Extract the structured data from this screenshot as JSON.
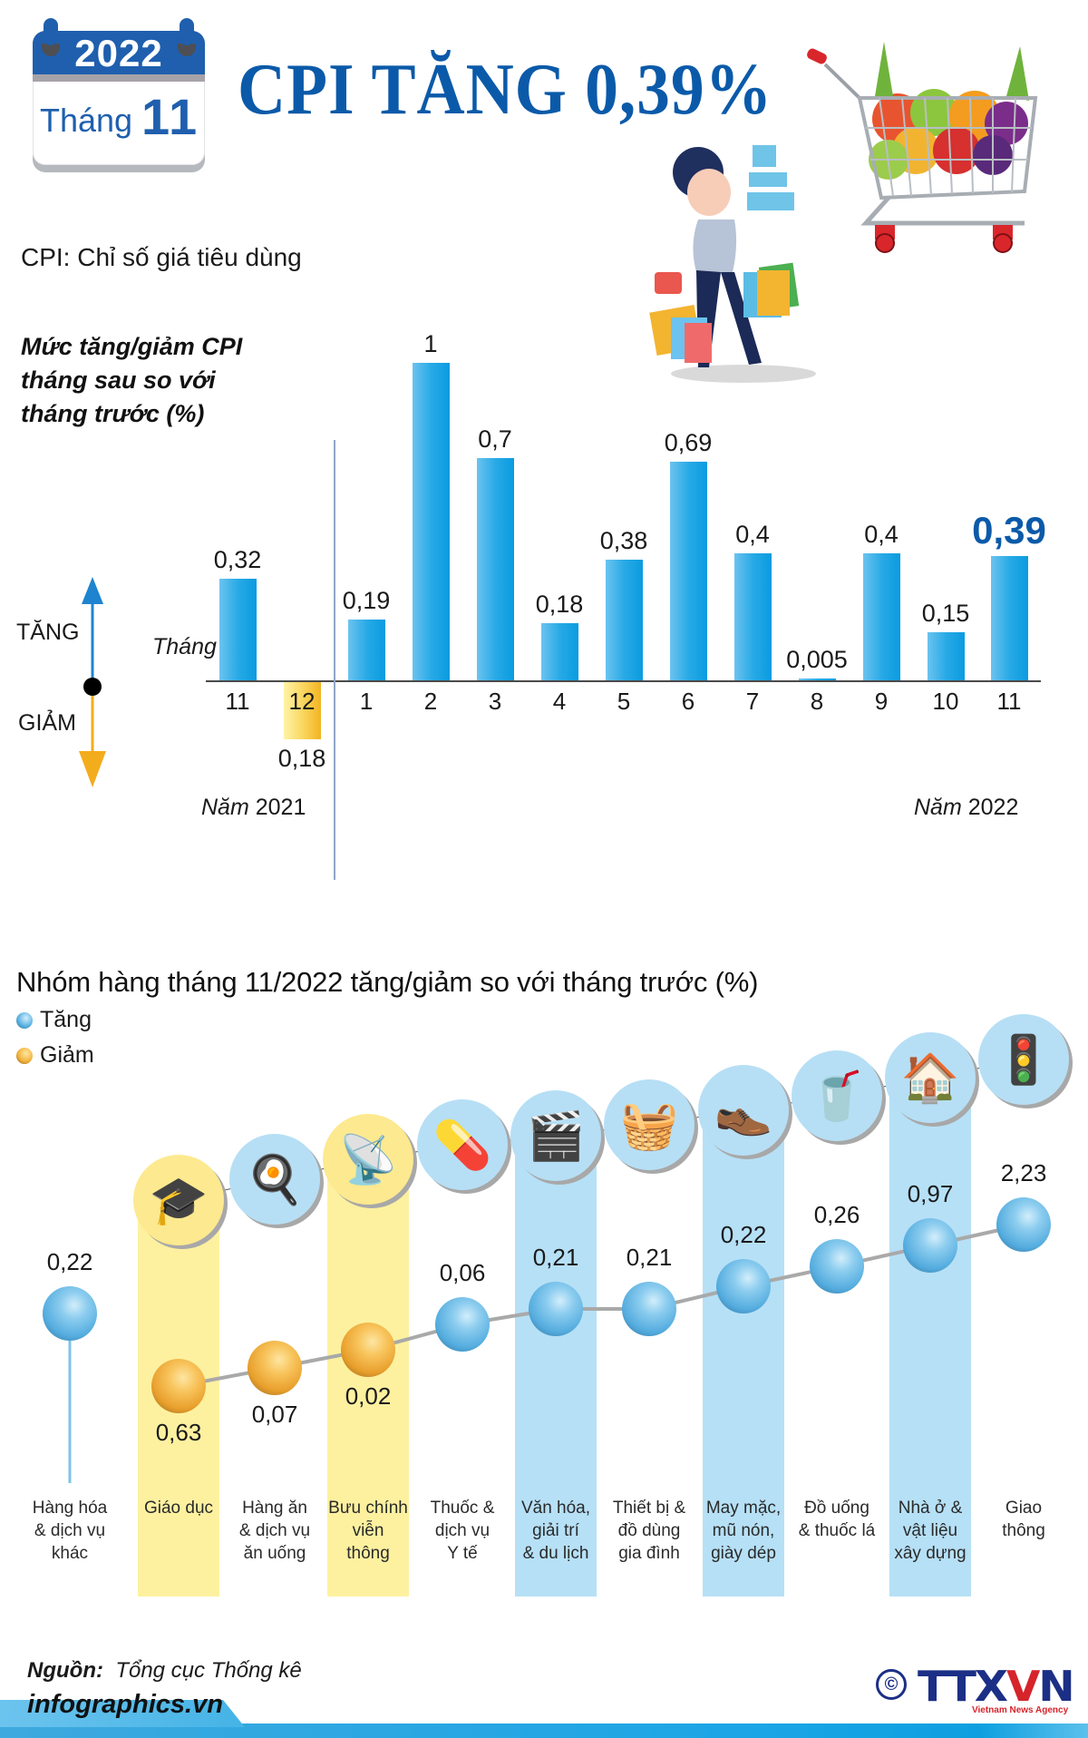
{
  "header": {
    "calendar": {
      "year": "2022",
      "month_label": "Tháng",
      "month_number": "11"
    },
    "title": "CPI TĂNG 0,39%",
    "definition": "CPI: Chỉ số giá tiêu dùng"
  },
  "monthly_chart": {
    "subtitle_lines": [
      "Mức tăng/giảm CPI",
      "tháng sau so với",
      "tháng trước (%)"
    ],
    "axis_label": "Tháng",
    "up_label": "TĂNG",
    "down_label": "GIẢM",
    "year_2021_label": {
      "word": "Năm",
      "year": "2021"
    },
    "year_2022_label": {
      "word": "Năm",
      "year": "2022"
    },
    "colors": {
      "up": "#1ea4e6",
      "down": "#f5bd2c",
      "highlight": "#0b5aa9"
    }
  },
  "group_chart": {
    "title": "Nhóm hàng tháng 11/2022 tăng/giảm so với tháng trước (%)",
    "legend": [
      {
        "label": "Tăng",
        "color": "#5bb3e3"
      },
      {
        "label": "Giảm",
        "color": "#f2b33c"
      }
    ]
  },
  "chart_data": [
    {
      "type": "bar",
      "title": "Mức tăng/giảm CPI tháng sau so với tháng trước (%)",
      "xlabel": "Tháng",
      "ylabel": "%",
      "categories": [
        "11/2021",
        "12/2021",
        "1/2022",
        "2/2022",
        "3/2022",
        "4/2022",
        "5/2022",
        "6/2022",
        "7/2022",
        "8/2022",
        "9/2022",
        "10/2022",
        "11/2022"
      ],
      "tick_labels": [
        "11",
        "12",
        "1",
        "2",
        "3",
        "4",
        "5",
        "6",
        "7",
        "8",
        "9",
        "10",
        "11"
      ],
      "value_labels": [
        "0,32",
        "0,18",
        "0,19",
        "1",
        "0,7",
        "0,18",
        "0,38",
        "0,69",
        "0,4",
        "0,005",
        "0,4",
        "0,15",
        "0,39"
      ],
      "values": [
        0.32,
        -0.18,
        0.19,
        1.0,
        0.7,
        0.18,
        0.38,
        0.69,
        0.4,
        0.005,
        0.4,
        0.15,
        0.39
      ],
      "direction": [
        "up",
        "down",
        "up",
        "up",
        "up",
        "up",
        "up",
        "up",
        "up",
        "up",
        "up",
        "up",
        "up"
      ],
      "highlight_index": 12,
      "groups": [
        {
          "label": "Năm 2021",
          "indices": [
            0,
            1
          ]
        },
        {
          "label": "Năm 2022",
          "indices": [
            2,
            3,
            4,
            5,
            6,
            7,
            8,
            9,
            10,
            11,
            12
          ]
        }
      ],
      "ylim": [
        -0.2,
        1.0
      ],
      "grid": false
    },
    {
      "type": "line",
      "title": "Nhóm hàng tháng 11/2022 tăng/giảm so với tháng trước (%)",
      "categories": [
        "Hàng hóa & dịch vụ khác",
        "Giáo dục",
        "Hàng ăn & dịch vụ ăn uống",
        "Bưu chính viễn thông",
        "Thuốc & dịch vụ Y tế",
        "Văn hóa, giải trí & du lịch",
        "Thiết bị & đồ dùng gia đình",
        "May mặc, mũ nón, giày dép",
        "Đồ uống & thuốc lá",
        "Nhà ở & vật liệu xây dựng",
        "Giao thông"
      ],
      "label_lines": [
        [
          "Hàng hóa",
          "& dịch vụ",
          "khác"
        ],
        [
          "Giáo dục"
        ],
        [
          "Hàng ăn",
          "& dịch vụ",
          "ăn uống"
        ],
        [
          "Bưu chính",
          "viễn",
          "thông"
        ],
        [
          "Thuốc &",
          "dịch vụ",
          "Y tế"
        ],
        [
          "Văn hóa,",
          "giải trí",
          "& du lịch"
        ],
        [
          "Thiết bị &",
          "đồ dùng",
          "gia đình"
        ],
        [
          "May mặc,",
          "mũ nón,",
          "giày dép"
        ],
        [
          "Đồ uống",
          "& thuốc lá"
        ],
        [
          "Nhà ở &",
          "vật liệu",
          "xây dựng"
        ],
        [
          "Giao",
          "thông"
        ]
      ],
      "value_labels": [
        "0,22",
        "0,63",
        "0,07",
        "0,02",
        "0,06",
        "0,21",
        "0,21",
        "0,22",
        "0,26",
        "0,97",
        "2,23"
      ],
      "values": [
        0.22,
        -0.63,
        -0.07,
        -0.02,
        0.06,
        0.21,
        0.21,
        0.22,
        0.26,
        0.97,
        2.23
      ],
      "direction": [
        "up",
        "down",
        "down",
        "down",
        "up",
        "up",
        "up",
        "up",
        "up",
        "up",
        "up"
      ],
      "icons": [
        "none",
        "graduation-cap",
        "food-plate",
        "radio-tower",
        "medicine-pills",
        "movie-clapper",
        "washing-machine",
        "shirt-shoes",
        "drink-cigarettes",
        "house",
        "traffic-light"
      ],
      "legend": [
        "Tăng",
        "Giảm"
      ]
    }
  ],
  "footer": {
    "source_label": "Nguồn:",
    "source_value": "Tổng cục Thống kê",
    "site": "infographics.vn",
    "copyright_symbol": "©",
    "logo_prefix": "TTX",
    "logo_v": "V",
    "logo_suffix": "N",
    "logo_subtitle": "Vietnam News Agency"
  }
}
